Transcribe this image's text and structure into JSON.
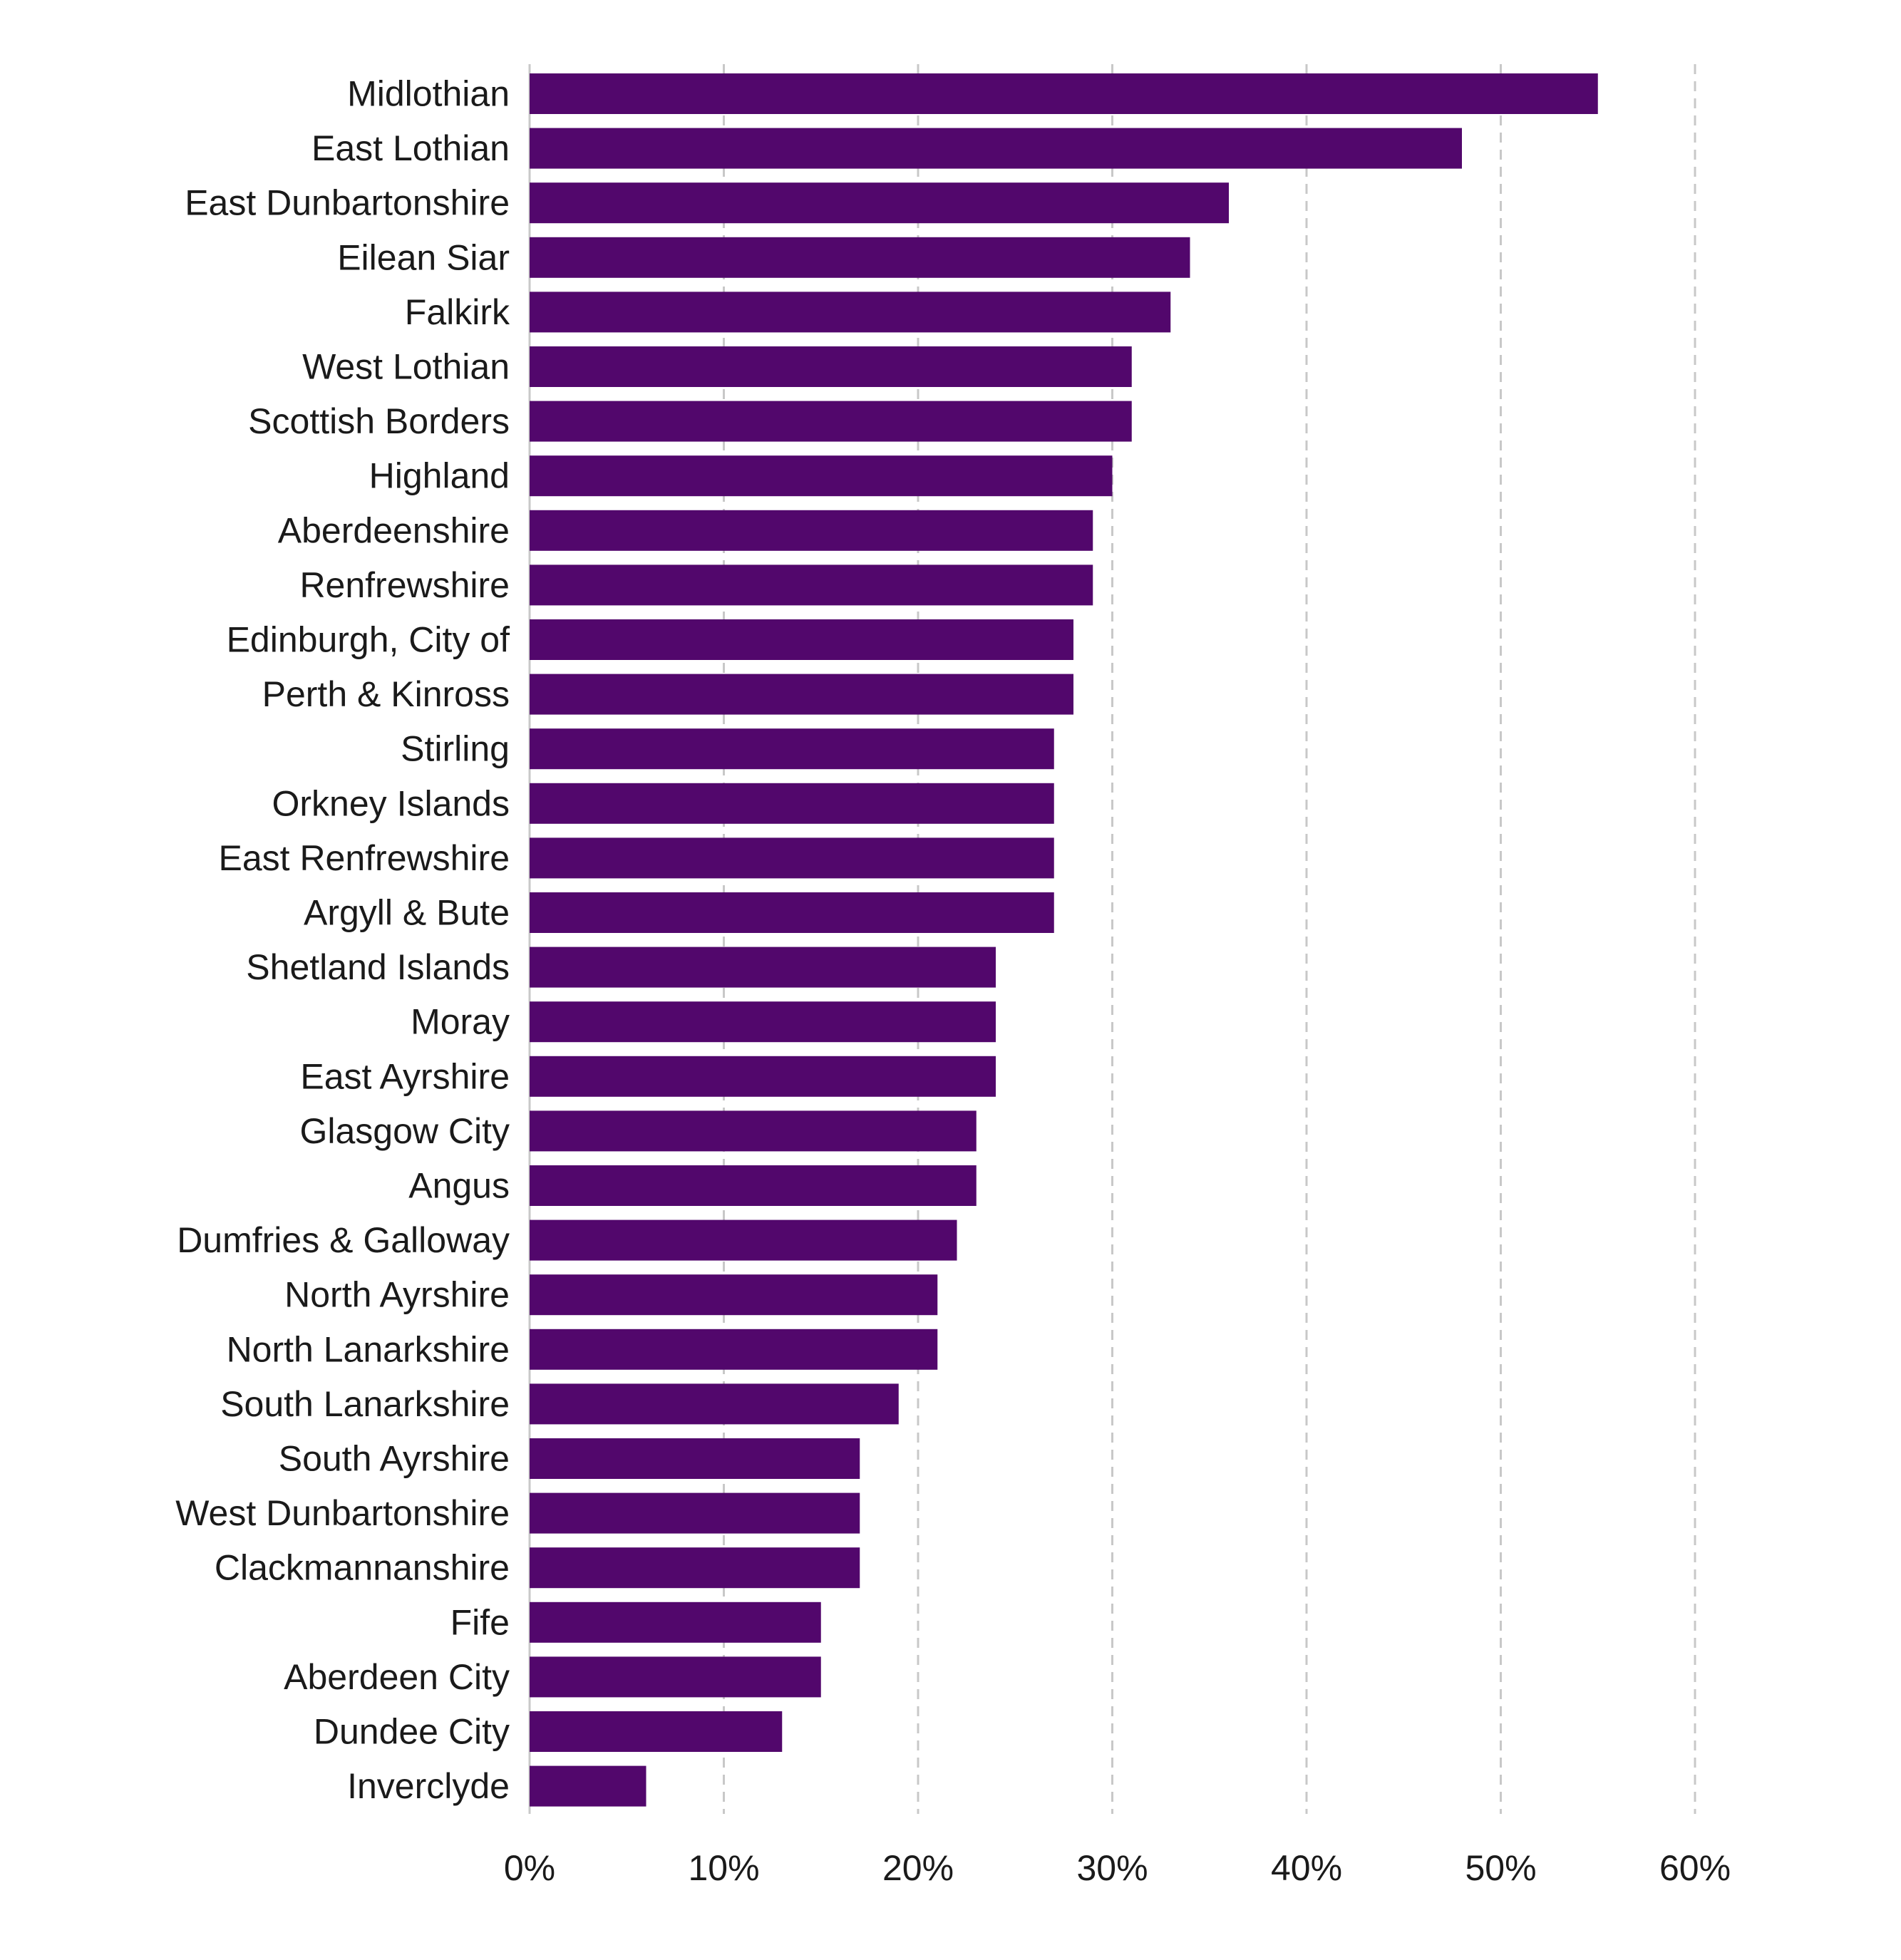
{
  "chart_data": {
    "type": "bar",
    "orientation": "horizontal",
    "title": "",
    "xlabel": "",
    "ylabel": "",
    "xlim": [
      0,
      60
    ],
    "x_ticks": [
      "0%",
      "10%",
      "20%",
      "30%",
      "40%",
      "50%",
      "60%"
    ],
    "grid": "vertical dashed",
    "bar_color": "#52076c",
    "categories": [
      "Midlothian",
      "East Lothian",
      "East Dunbartonshire",
      "Eilean Siar",
      "Falkirk",
      "West Lothian",
      "Scottish Borders",
      "Highland",
      "Aberdeenshire",
      "Renfrewshire",
      "Edinburgh, City of",
      "Perth & Kinross",
      "Stirling",
      "Orkney Islands",
      "East Renfrewshire",
      "Argyll & Bute",
      "Shetland Islands",
      "Moray",
      "East Ayrshire",
      "Glasgow City",
      "Angus",
      "Dumfries & Galloway",
      "North Ayrshire",
      "North Lanarkshire",
      "South Lanarkshire",
      "South Ayrshire",
      "West Dunbartonshire",
      "Clackmannanshire",
      "Fife",
      "Aberdeen City",
      "Dundee City",
      "Inverclyde"
    ],
    "values": [
      55,
      48,
      36,
      34,
      33,
      31,
      31,
      30,
      29,
      29,
      28,
      28,
      27,
      27,
      27,
      27,
      24,
      24,
      24,
      23,
      23,
      22,
      21,
      21,
      19,
      17,
      17,
      17,
      15,
      15,
      13,
      6
    ]
  }
}
